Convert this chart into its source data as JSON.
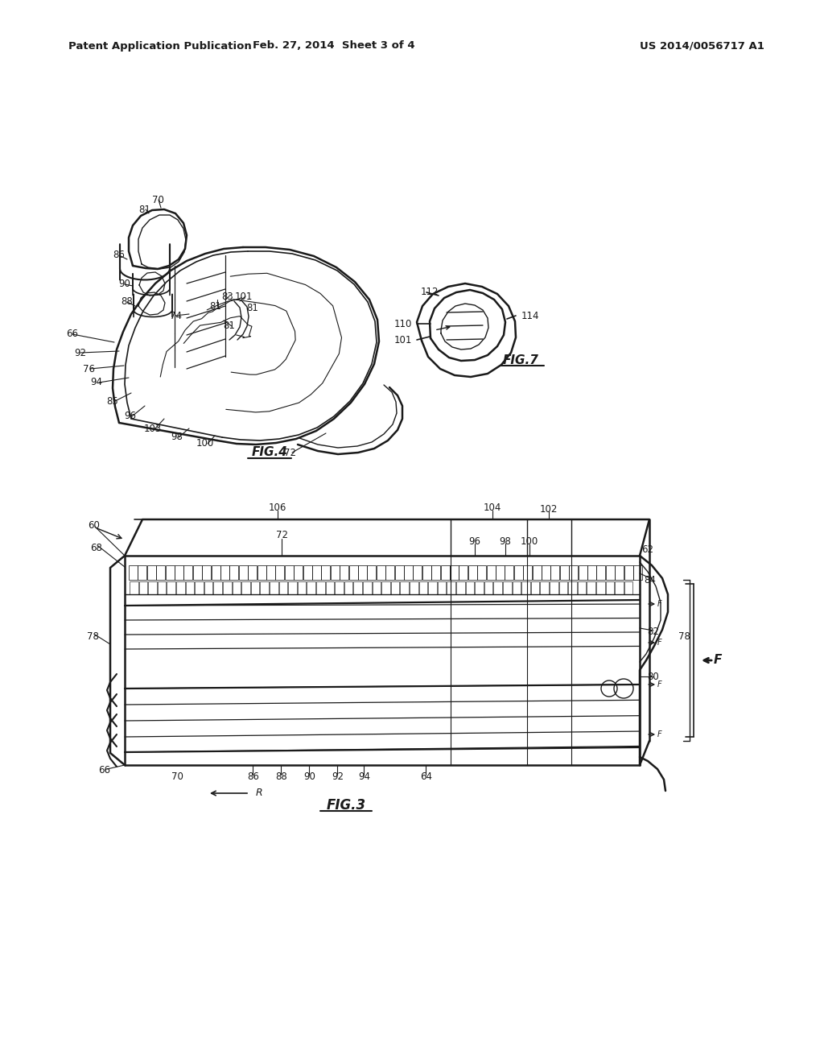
{
  "bg_color": "#ffffff",
  "lc": "#1a1a1a",
  "header_left": "Patent Application Publication",
  "header_mid": "Feb. 27, 2014  Sheet 3 of 4",
  "header_right": "US 2014/0056717 A1"
}
